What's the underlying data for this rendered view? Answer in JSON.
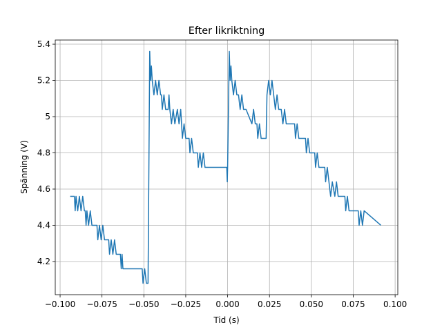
{
  "chart_data": {
    "type": "line",
    "title": "Efter likriktning",
    "xlabel": "Tid (s)",
    "ylabel": "Spänning (V)",
    "grid": true,
    "xlim": [
      -0.1029,
      0.1016
    ],
    "ylim": [
      4.017,
      5.423
    ],
    "xticks": [
      {
        "value": -0.1,
        "label": "−0.100"
      },
      {
        "value": -0.075,
        "label": "−0.075"
      },
      {
        "value": -0.05,
        "label": "−0.050"
      },
      {
        "value": -0.025,
        "label": "−0.025"
      },
      {
        "value": 0,
        "label": "0.000"
      },
      {
        "value": 0.025,
        "label": "0.025"
      },
      {
        "value": 0.05,
        "label": "0.050"
      },
      {
        "value": 0.075,
        "label": "0.075"
      },
      {
        "value": 0.1,
        "label": "0.100"
      }
    ],
    "yticks": [
      4.2,
      4.4,
      4.6,
      4.8,
      5.0,
      5.2,
      5.4
    ],
    "series": [
      {
        "color": "#1f77b4",
        "x": [
          -0.094,
          -0.0915,
          -0.091,
          -0.0905,
          -0.0895,
          -0.0885,
          -0.0875,
          -0.0865,
          -0.0855,
          -0.085,
          -0.0845,
          -0.084,
          -0.083,
          -0.082,
          -0.081,
          -0.078,
          -0.0775,
          -0.0765,
          -0.0755,
          -0.0745,
          -0.0735,
          -0.071,
          -0.0705,
          -0.0695,
          -0.0685,
          -0.0675,
          -0.0665,
          -0.064,
          -0.0635,
          -0.063,
          -0.0625,
          -0.051,
          -0.0505,
          -0.0495,
          -0.0485,
          -0.0475,
          -0.0465,
          -0.046,
          -0.0455,
          -0.045,
          -0.044,
          -0.043,
          -0.042,
          -0.041,
          -0.04,
          -0.0395,
          -0.039,
          -0.038,
          -0.037,
          -0.0355,
          -0.035,
          -0.0345,
          -0.0335,
          -0.0325,
          -0.0315,
          -0.03,
          -0.029,
          -0.028,
          -0.0275,
          -0.027,
          -0.026,
          -0.025,
          -0.023,
          -0.0225,
          -0.0215,
          -0.0205,
          -0.018,
          -0.0175,
          -0.0165,
          -0.0155,
          -0.0145,
          -0.0135,
          -0.0005,
          -0.0002,
          0.0,
          0.001,
          0.0015,
          0.002,
          0.0025,
          0.0035,
          0.0045,
          0.0055,
          0.0065,
          0.0075,
          0.0085,
          0.0095,
          0.011,
          0.0145,
          0.0155,
          0.0165,
          0.0175,
          0.018,
          0.019,
          0.02,
          0.023,
          0.0235,
          0.0245,
          0.0255,
          0.0265,
          0.0275,
          0.0285,
          0.0295,
          0.0305,
          0.032,
          0.033,
          0.034,
          0.035,
          0.04,
          0.0405,
          0.0415,
          0.0425,
          0.0465,
          0.047,
          0.048,
          0.049,
          0.052,
          0.0525,
          0.0535,
          0.0545,
          0.058,
          0.0585,
          0.0595,
          0.0605,
          0.0615,
          0.0625,
          0.064,
          0.065,
          0.066,
          0.07,
          0.0705,
          0.0715,
          0.0725,
          0.078,
          0.0785,
          0.0795,
          0.0805,
          0.0815,
          0.0915
        ],
        "values": [
          4.56,
          4.56,
          4.48,
          4.56,
          4.48,
          4.56,
          4.48,
          4.56,
          4.48,
          4.48,
          4.4,
          4.48,
          4.4,
          4.48,
          4.4,
          4.4,
          4.32,
          4.4,
          4.32,
          4.4,
          4.32,
          4.32,
          4.24,
          4.32,
          4.24,
          4.32,
          4.24,
          4.24,
          4.16,
          4.24,
          4.16,
          4.16,
          4.08,
          4.16,
          4.08,
          4.08,
          5.36,
          5.2,
          5.28,
          5.2,
          5.12,
          5.2,
          5.12,
          5.2,
          5.12,
          5.12,
          5.04,
          5.12,
          5.04,
          5.04,
          5.12,
          5.04,
          4.96,
          5.04,
          4.96,
          5.04,
          4.96,
          5.04,
          4.96,
          4.88,
          4.96,
          4.88,
          4.88,
          4.8,
          4.88,
          4.8,
          4.8,
          4.72,
          4.8,
          4.72,
          4.8,
          4.72,
          4.72,
          4.64,
          4.72,
          5.36,
          5.2,
          5.28,
          5.2,
          5.12,
          5.2,
          5.12,
          5.12,
          5.04,
          5.12,
          5.04,
          5.04,
          4.96,
          5.04,
          4.96,
          4.96,
          4.88,
          4.96,
          4.88,
          4.88,
          5.12,
          5.2,
          5.12,
          5.2,
          5.12,
          5.04,
          5.12,
          5.04,
          5.04,
          4.96,
          5.04,
          4.96,
          4.96,
          4.88,
          4.96,
          4.88,
          4.88,
          4.8,
          4.88,
          4.8,
          4.8,
          4.72,
          4.8,
          4.72,
          4.72,
          4.64,
          4.72,
          4.64,
          4.56,
          4.64,
          4.56,
          4.64,
          4.56,
          4.56,
          4.48,
          4.56,
          4.48,
          4.48,
          4.4,
          4.48,
          4.4,
          4.48,
          4.4
        ]
      }
    ]
  }
}
